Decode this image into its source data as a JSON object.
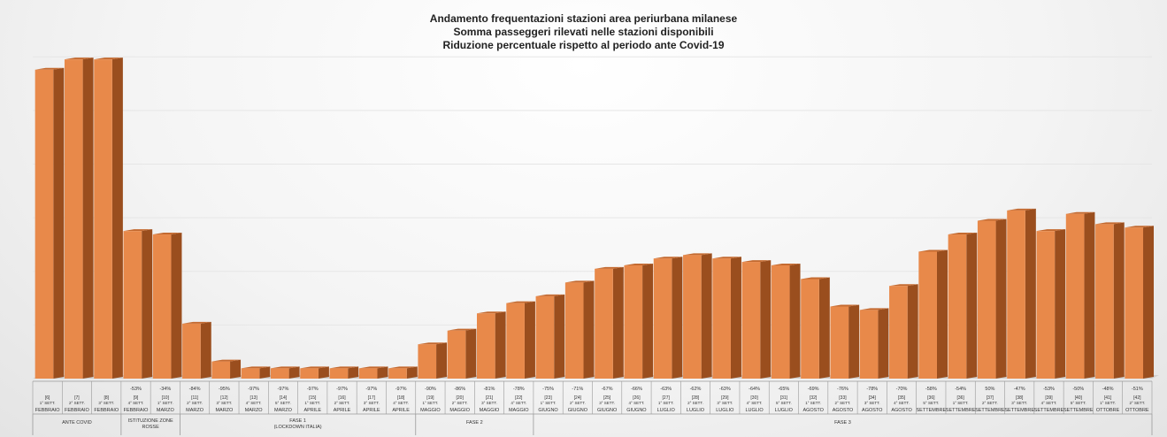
{
  "chart_data": {
    "type": "bar",
    "title_lines": [
      "Andamento frequentazioni stazioni area periurbana milanese",
      "Somma passeggeri rilevati nelle stazioni disponibili",
      "Riduzione percentuale rispetto al periodo ante Covid-19"
    ],
    "value_scale": "relative passengers (estimated, axis not labeled)",
    "ylim": [
      0,
      100
    ],
    "grid": true,
    "categories": [
      {
        "week": "[6]",
        "sett": "1° SETT.",
        "month": "FEBBRAIO",
        "pct": "",
        "value": 90
      },
      {
        "week": "[7]",
        "sett": "2° SETT.",
        "month": "FEBBRAIO",
        "pct": "",
        "value": 93
      },
      {
        "week": "[8]",
        "sett": "3° SETT.",
        "month": "FEBBRAIO",
        "pct": "",
        "value": 93
      },
      {
        "week": "[9]",
        "sett": "4° SETT.",
        "month": "FEBBRAIO",
        "pct": "-53%",
        "value": 43
      },
      {
        "week": "[10]",
        "sett": "1° SETT.",
        "month": "MARZO",
        "pct": "-34%",
        "value": 42
      },
      {
        "week": "[11]",
        "sett": "2° SETT.",
        "month": "MARZO",
        "pct": "-84%",
        "value": 16
      },
      {
        "week": "[12]",
        "sett": "3° SETT.",
        "month": "MARZO",
        "pct": "-95%",
        "value": 5
      },
      {
        "week": "[13]",
        "sett": "4° SETT.",
        "month": "MARZO",
        "pct": "-97%",
        "value": 3
      },
      {
        "week": "[14]",
        "sett": "5° SETT.",
        "month": "MARZO",
        "pct": "-97%",
        "value": 3
      },
      {
        "week": "[15]",
        "sett": "1° SETT.",
        "month": "APRILE",
        "pct": "-97%",
        "value": 3
      },
      {
        "week": "[16]",
        "sett": "2° SETT.",
        "month": "APRILE",
        "pct": "-97%",
        "value": 3
      },
      {
        "week": "[17]",
        "sett": "3° SETT.",
        "month": "APRILE",
        "pct": "-97%",
        "value": 3
      },
      {
        "week": "[18]",
        "sett": "4° SETT.",
        "month": "APRILE",
        "pct": "-97%",
        "value": 3
      },
      {
        "week": "[19]",
        "sett": "1° SETT.",
        "month": "MAGGIO",
        "pct": "-90%",
        "value": 10
      },
      {
        "week": "[20]",
        "sett": "2° SETT.",
        "month": "MAGGIO",
        "pct": "-86%",
        "value": 14
      },
      {
        "week": "[21]",
        "sett": "3° SETT.",
        "month": "MAGGIO",
        "pct": "-81%",
        "value": 19
      },
      {
        "week": "[22]",
        "sett": "4° SETT.",
        "month": "MAGGIO",
        "pct": "-78%",
        "value": 22
      },
      {
        "week": "[23]",
        "sett": "1° SETT.",
        "month": "GIUGNO",
        "pct": "-75%",
        "value": 24
      },
      {
        "week": "[24]",
        "sett": "2° SETT.",
        "month": "GIUGNO",
        "pct": "-71%",
        "value": 28
      },
      {
        "week": "[25]",
        "sett": "3° SETT.",
        "month": "GIUGNO",
        "pct": "-67%",
        "value": 32
      },
      {
        "week": "[26]",
        "sett": "4° SETT.",
        "month": "GIUGNO",
        "pct": "-66%",
        "value": 33
      },
      {
        "week": "[27]",
        "sett": "1° SETT.",
        "month": "LUGLIO",
        "pct": "-63%",
        "value": 35
      },
      {
        "week": "[28]",
        "sett": "2° SETT.",
        "month": "LUGLIO",
        "pct": "-62%",
        "value": 36
      },
      {
        "week": "[29]",
        "sett": "3° SETT.",
        "month": "LUGLIO",
        "pct": "-63%",
        "value": 35
      },
      {
        "week": "[30]",
        "sett": "4° SETT.",
        "month": "LUGLIO",
        "pct": "-64%",
        "value": 34
      },
      {
        "week": "[31]",
        "sett": "5° SETT.",
        "month": "LUGLIO",
        "pct": "-65%",
        "value": 33
      },
      {
        "week": "[32]",
        "sett": "1° SETT.",
        "month": "AGOSTO",
        "pct": "-69%",
        "value": 29
      },
      {
        "week": "[33]",
        "sett": "2° SETT.",
        "month": "AGOSTO",
        "pct": "-76%",
        "value": 21
      },
      {
        "week": "[34]",
        "sett": "3° SETT.",
        "month": "AGOSTO",
        "pct": "-78%",
        "value": 20
      },
      {
        "week": "[35]",
        "sett": "4° SETT.",
        "month": "AGOSTO",
        "pct": "-70%",
        "value": 27
      },
      {
        "week": "[36]",
        "sett": "5° SETT.",
        "month": "SETTEMBRE",
        "pct": "-58%",
        "value": 37
      },
      {
        "week": "[36]",
        "sett": "1° SETT.",
        "month": "SETTEMBRE",
        "pct": "-54%",
        "value": 42
      },
      {
        "week": "[37]",
        "sett": "2° SETT.",
        "month": "SETTEMBRE",
        "pct": "50%",
        "value": 46
      },
      {
        "week": "[38]",
        "sett": "3° SETT.",
        "month": "SETTEMBRE",
        "pct": "-47%",
        "value": 49
      },
      {
        "week": "[39]",
        "sett": "4° SETT.",
        "month": "SETTEMBRE",
        "pct": "-53%",
        "value": 43
      },
      {
        "week": "[40]",
        "sett": "5° SETT.",
        "month": "SETTEMBRE",
        "pct": "-50%",
        "value": 48
      },
      {
        "week": "[41]",
        "sett": "1° SETT.",
        "month": "OTTOBRE",
        "pct": "-48%",
        "value": 45
      },
      {
        "week": "[42]",
        "sett": "2° SETT.",
        "month": "OTTOBRE",
        "pct": "-51%",
        "value": 44
      }
    ],
    "phases": [
      {
        "label": "ANTE COVID",
        "start": 0,
        "end": 2
      },
      {
        "label": "ISTITUZIONE ZONE ROSSE",
        "start": 3,
        "end": 4
      },
      {
        "label": "FASE 1 (LOCKDOWN ITALIA)",
        "start": 5,
        "end": 12
      },
      {
        "label": "FASE 2",
        "start": 13,
        "end": 16
      },
      {
        "label": "FASE 3",
        "start": 17,
        "end": 37
      }
    ],
    "colors": {
      "bar_front": "#e8894a",
      "bar_side": "#9a4e1e",
      "bar_top": "#c46a30",
      "grid": "#e6e6e6",
      "table_line": "#999999",
      "text": "#333333"
    }
  }
}
